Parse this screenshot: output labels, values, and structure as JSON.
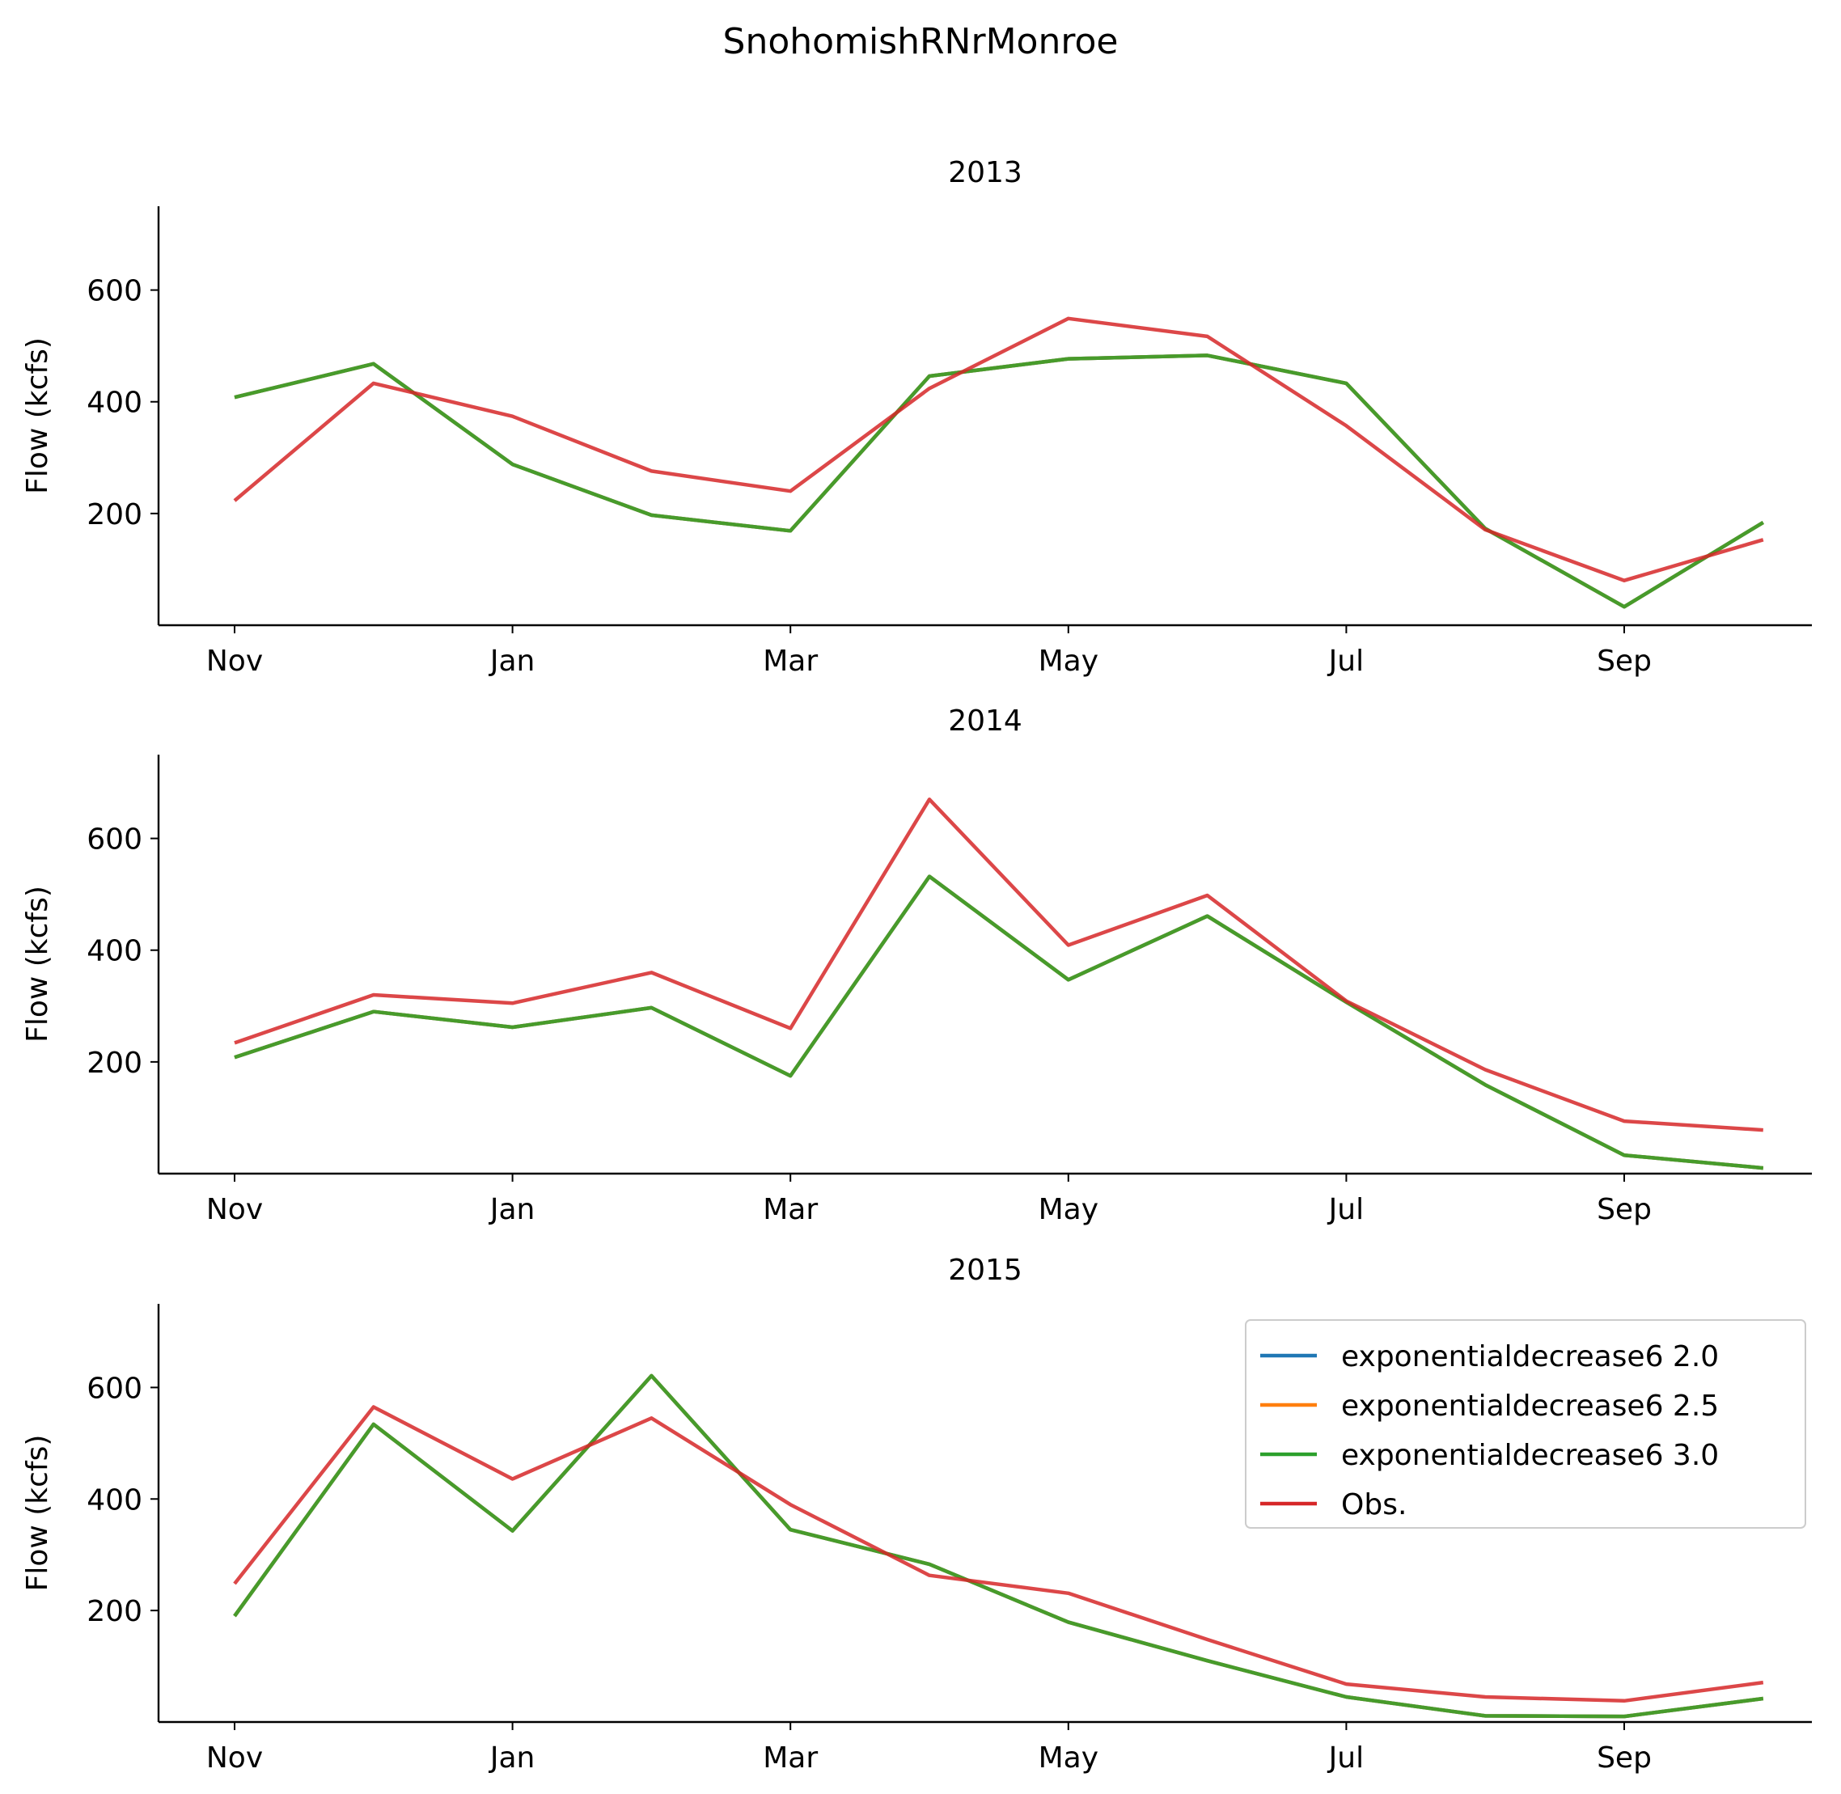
{
  "figure": {
    "suptitle": "SnohomishRNrMonroe"
  },
  "chart_data": [
    {
      "type": "line",
      "title": "2013",
      "ylabel": "Flow (kcfs)",
      "xlabel": "",
      "x": [
        "Nov",
        "Dec",
        "Jan",
        "Feb",
        "Mar",
        "Apr",
        "May",
        "Jun",
        "Jul",
        "Aug",
        "Sep",
        "Oct"
      ],
      "x_tick_labels": [
        "Nov",
        "Jan",
        "Mar",
        "May",
        "Jul",
        "Sep"
      ],
      "yticks": [
        200,
        400,
        600
      ],
      "ylim": [
        0,
        750
      ],
      "grid": false,
      "series": [
        {
          "name": "exponentialdecrease6 2.0",
          "color": "#1f77b4",
          "values": [
            408,
            468,
            288,
            197,
            169,
            446,
            477,
            483,
            433,
            173,
            33,
            184
          ]
        },
        {
          "name": "exponentialdecrease6 2.5",
          "color": "#ff7f0e",
          "values": [
            408,
            468,
            288,
            197,
            169,
            446,
            477,
            483,
            433,
            173,
            33,
            184
          ]
        },
        {
          "name": "exponentialdecrease6 3.0",
          "color": "#2ca02c",
          "values": [
            408,
            468,
            288,
            197,
            169,
            446,
            477,
            483,
            433,
            173,
            33,
            184
          ]
        },
        {
          "name": "Obs.",
          "color": "#d62728",
          "values": [
            223,
            433,
            374,
            276,
            240,
            424,
            549,
            517,
            357,
            171,
            80,
            153
          ]
        }
      ]
    },
    {
      "type": "line",
      "title": "2014",
      "ylabel": "Flow (kcfs)",
      "xlabel": "",
      "x": [
        "Nov",
        "Dec",
        "Jan",
        "Feb",
        "Mar",
        "Apr",
        "May",
        "Jun",
        "Jul",
        "Aug",
        "Sep",
        "Oct"
      ],
      "x_tick_labels": [
        "Nov",
        "Jan",
        "Mar",
        "May",
        "Jul",
        "Sep"
      ],
      "yticks": [
        200,
        400,
        600
      ],
      "ylim": [
        0,
        750
      ],
      "grid": false,
      "series": [
        {
          "name": "exponentialdecrease6 2.0",
          "color": "#1f77b4",
          "values": [
            208,
            290,
            262,
            297,
            175,
            532,
            347,
            461,
            307,
            159,
            33,
            10
          ]
        },
        {
          "name": "exponentialdecrease6 2.5",
          "color": "#ff7f0e",
          "values": [
            208,
            290,
            262,
            297,
            175,
            532,
            347,
            461,
            307,
            159,
            33,
            10
          ]
        },
        {
          "name": "exponentialdecrease6 3.0",
          "color": "#2ca02c",
          "values": [
            208,
            290,
            262,
            297,
            175,
            532,
            347,
            461,
            307,
            159,
            33,
            10
          ]
        },
        {
          "name": "Obs.",
          "color": "#d62728",
          "values": [
            234,
            320,
            305,
            360,
            260,
            670,
            409,
            498,
            309,
            186,
            94,
            78
          ]
        }
      ]
    },
    {
      "type": "line",
      "title": "2015",
      "ylabel": "Flow (kcfs)",
      "xlabel": "",
      "x": [
        "Nov",
        "Dec",
        "Jan",
        "Feb",
        "Mar",
        "Apr",
        "May",
        "Jun",
        "Jul",
        "Aug",
        "Sep",
        "Oct"
      ],
      "x_tick_labels": [
        "Nov",
        "Jan",
        "Mar",
        "May",
        "Jul",
        "Sep"
      ],
      "yticks": [
        200,
        400,
        600
      ],
      "ylim": [
        0,
        750
      ],
      "grid": false,
      "legend_placement": "top-right",
      "series": [
        {
          "name": "exponentialdecrease6 2.0",
          "color": "#1f77b4",
          "values": [
            190,
            534,
            343,
            621,
            345,
            283,
            179,
            110,
            45,
            11,
            10,
            42
          ]
        },
        {
          "name": "exponentialdecrease6 2.5",
          "color": "#ff7f0e",
          "values": [
            190,
            534,
            343,
            621,
            345,
            283,
            179,
            110,
            45,
            11,
            10,
            42
          ]
        },
        {
          "name": "exponentialdecrease6 3.0",
          "color": "#2ca02c",
          "values": [
            190,
            534,
            343,
            621,
            345,
            283,
            179,
            110,
            45,
            11,
            10,
            42
          ]
        },
        {
          "name": "Obs.",
          "color": "#d62728",
          "values": [
            248,
            565,
            436,
            545,
            390,
            263,
            231,
            148,
            68,
            45,
            38,
            71
          ]
        }
      ]
    }
  ]
}
